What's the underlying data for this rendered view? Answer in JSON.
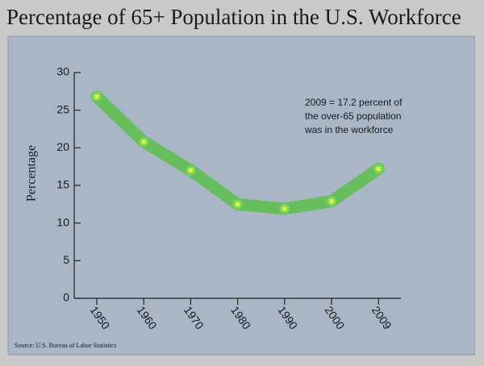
{
  "chart_data": {
    "type": "line",
    "title": "Percentage of 65+ Population in the U.S. Workforce",
    "y_label": "Percentage",
    "source": "Source: U.S. Bureau of Labor Statistics",
    "annotation": [
      "2009 = 17.2 percent of",
      "the over-65 population",
      "was in the workforce"
    ],
    "categories": [
      "1950",
      "1960",
      "1970",
      "1980",
      "1990",
      "2000",
      "2009"
    ],
    "series": [
      {
        "color": "#5cc04a",
        "values": [
          26.8,
          20.8,
          17.0,
          12.5,
          11.9,
          12.9,
          17.2
        ]
      }
    ],
    "ylim": [
      0,
      30
    ],
    "yticks": [
      0,
      5,
      10,
      15,
      20,
      25,
      30
    ]
  }
}
